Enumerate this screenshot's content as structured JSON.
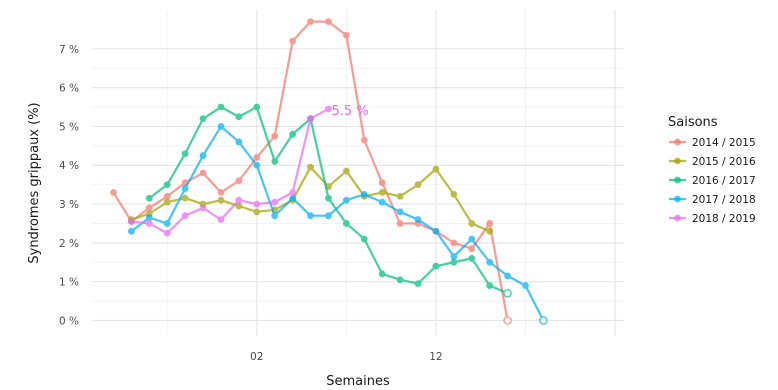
{
  "chart_data": {
    "type": "line",
    "title": "",
    "xlabel": "Semaines",
    "ylabel": "Syndromes grippaux (%)",
    "ylim": [
      -0.4,
      8.0
    ],
    "y_ticks": [
      0,
      1,
      2,
      3,
      4,
      5,
      6,
      7
    ],
    "y_tick_labels": [
      "0 %",
      "1 %",
      "2 %",
      "3 %",
      "4 %",
      "5 %",
      "6 %",
      "7 %"
    ],
    "x_ticks": [
      {
        "x": 2,
        "label": "02"
      },
      {
        "x": 12,
        "label": "12"
      }
    ],
    "xlim": [
      -7.2,
      22.5
    ],
    "grid": true,
    "legend": {
      "title": "Saisons",
      "position": "right"
    },
    "annotation": {
      "text": "5.5 %",
      "series": "2018 / 2019",
      "x": 6,
      "y": 5.45
    },
    "series": [
      {
        "name": "2014 / 2015",
        "color": "#F8766D",
        "x": [
          -6,
          -5,
          -4,
          -3,
          -2,
          -1,
          0,
          1,
          2,
          3,
          4,
          5,
          6,
          7,
          8,
          9,
          10,
          11,
          12,
          13,
          14,
          15,
          16
        ],
        "values": [
          3.3,
          2.55,
          2.9,
          3.2,
          3.55,
          3.8,
          3.3,
          3.6,
          4.2,
          4.75,
          7.2,
          7.7,
          7.7,
          7.35,
          4.65,
          3.55,
          2.5,
          2.5,
          2.3,
          2.0,
          1.85,
          2.5,
          0.0
        ],
        "end_marker": true
      },
      {
        "name": "2015 / 2016",
        "color": "#A3A500",
        "x": [
          -5,
          -4,
          -3,
          -2,
          -1,
          0,
          1,
          2,
          3,
          4,
          5,
          6,
          7,
          8,
          9,
          10,
          11,
          12,
          13,
          14,
          15
        ],
        "values": [
          2.6,
          2.75,
          3.05,
          3.15,
          3.0,
          3.1,
          2.95,
          2.8,
          2.85,
          3.1,
          3.95,
          3.45,
          3.85,
          3.2,
          3.3,
          3.2,
          3.5,
          3.9,
          3.25,
          2.5,
          2.3
        ],
        "end_marker": false
      },
      {
        "name": "2016 / 2017",
        "color": "#00BF7D",
        "x": [
          -4,
          -3,
          -2,
          -1,
          0,
          1,
          2,
          3,
          4,
          5,
          6,
          7,
          8,
          9,
          10,
          11,
          12,
          13,
          14,
          15,
          16
        ],
        "values": [
          3.15,
          3.5,
          4.3,
          5.2,
          5.5,
          5.25,
          5.5,
          4.1,
          4.8,
          5.2,
          3.15,
          2.5,
          2.1,
          1.2,
          1.05,
          0.95,
          1.4,
          1.5,
          1.6,
          0.9,
          0.7
        ],
        "end_marker": true
      },
      {
        "name": "2017 / 2018",
        "color": "#00B0F6",
        "x": [
          -5,
          -4,
          -3,
          -2,
          -1,
          0,
          1,
          2,
          3,
          4,
          5,
          6,
          7,
          8,
          9,
          10,
          11,
          12,
          13,
          14,
          15,
          16,
          17,
          18
        ],
        "values": [
          2.3,
          2.65,
          2.5,
          3.4,
          4.25,
          5.0,
          4.6,
          4.0,
          2.7,
          3.15,
          2.7,
          2.7,
          3.1,
          3.25,
          3.05,
          2.8,
          2.6,
          2.3,
          1.65,
          2.1,
          1.5,
          1.15,
          0.9,
          0.0
        ],
        "end_marker": true
      },
      {
        "name": "2018 / 2019",
        "color": "#E76BF3",
        "x": [
          -5,
          -4,
          -3,
          -2,
          -1,
          0,
          1,
          2,
          3,
          4,
          5,
          6
        ],
        "values": [
          2.55,
          2.5,
          2.25,
          2.7,
          2.9,
          2.6,
          3.1,
          3.0,
          3.05,
          3.3,
          5.2,
          5.45
        ],
        "end_marker": false
      }
    ]
  }
}
